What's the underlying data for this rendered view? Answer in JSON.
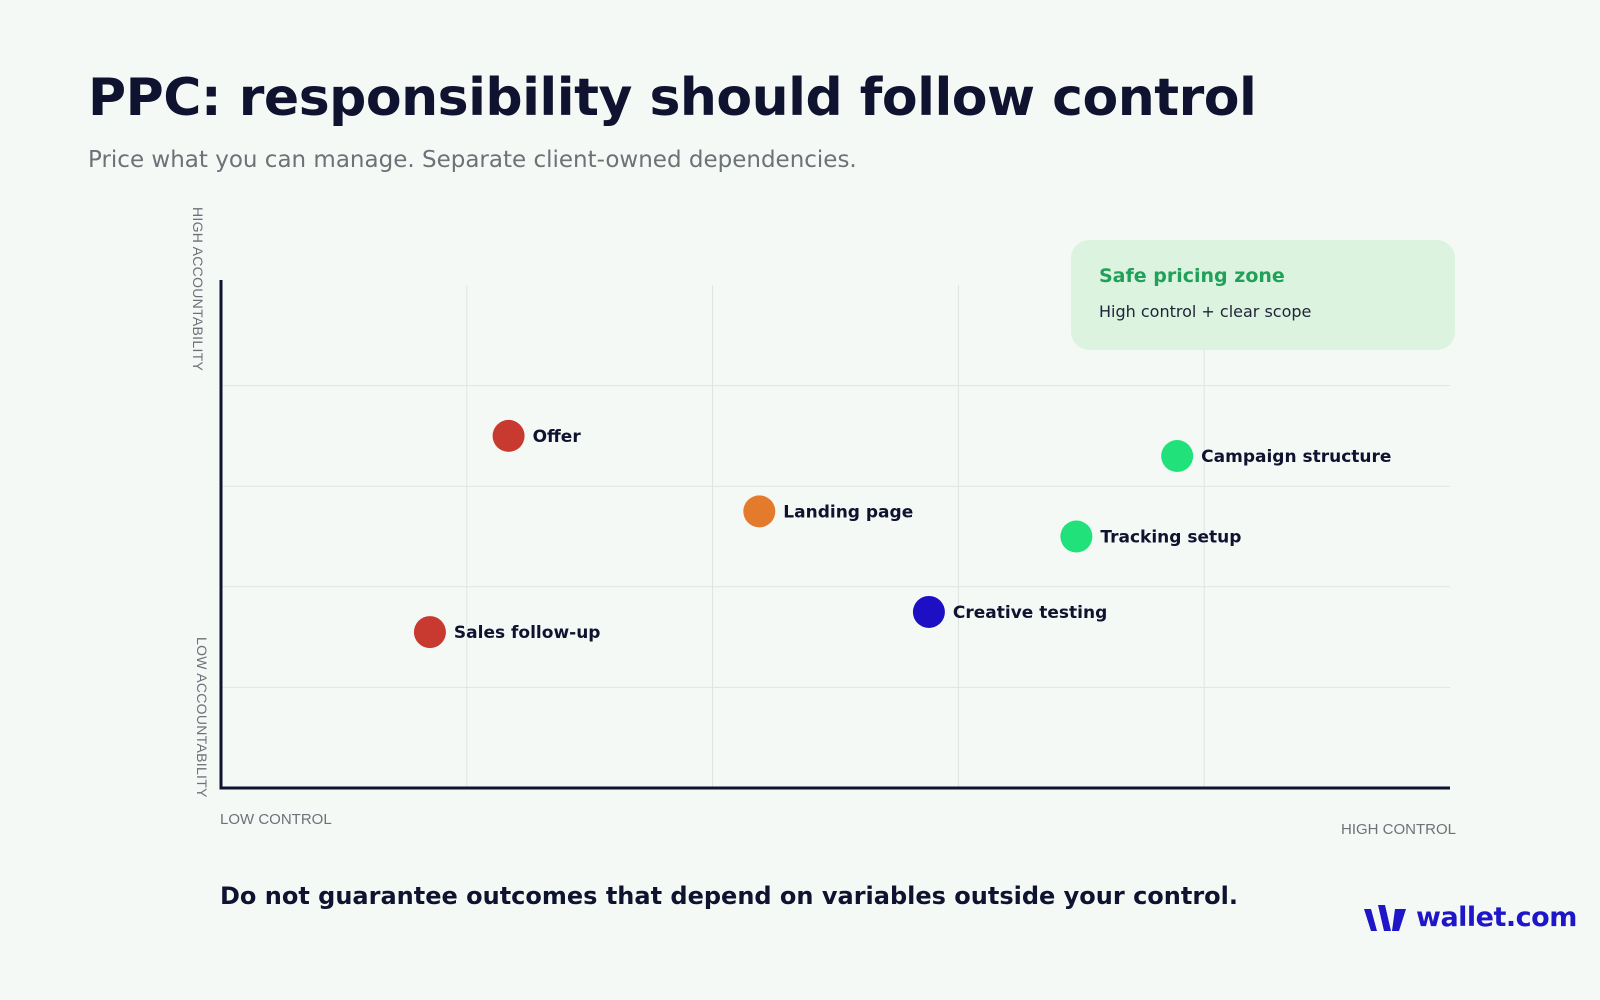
{
  "title": "PPC: responsibility should follow control",
  "subtitle": "Price what you can manage. Separate client-owned dependencies.",
  "footnote": "Do not guarantee outcomes that depend on variables outside your control.",
  "brand": "wallet.com",
  "colors": {
    "red": "#c83a2f",
    "orange": "#e47b2c",
    "green": "#21e27a",
    "blue": "#1c0fc4",
    "zone_bg": "#dcf4df",
    "zone_title": "#21a05a",
    "brand": "#1f16c8"
  },
  "chart_data": {
    "type": "scatter",
    "axis_labels": {
      "x_low": "LOW CONTROL",
      "x_high": "HIGH CONTROL",
      "y_low": "LOW ACCOUNTABILITY",
      "y_high": "HIGH ACCOUNTABILITY"
    },
    "xlim": [
      0,
      5
    ],
    "ylim": [
      0,
      5
    ],
    "grid": true,
    "zone": {
      "title": "Safe pricing zone",
      "description": "High control + clear scope",
      "placement": "top-right"
    },
    "points": [
      {
        "label": "Offer",
        "x": 1.17,
        "y": 3.5,
        "color": "#c83a2f"
      },
      {
        "label": "Landing page",
        "x": 2.19,
        "y": 2.75,
        "color": "#e47b2c"
      },
      {
        "label": "Campaign structure",
        "x": 3.89,
        "y": 3.3,
        "color": "#21e27a"
      },
      {
        "label": "Tracking setup",
        "x": 3.48,
        "y": 2.5,
        "color": "#21e27a"
      },
      {
        "label": "Creative testing",
        "x": 2.88,
        "y": 1.75,
        "color": "#1c0fc4"
      },
      {
        "label": "Sales follow-up",
        "x": 0.85,
        "y": 1.55,
        "color": "#c83a2f"
      }
    ]
  }
}
